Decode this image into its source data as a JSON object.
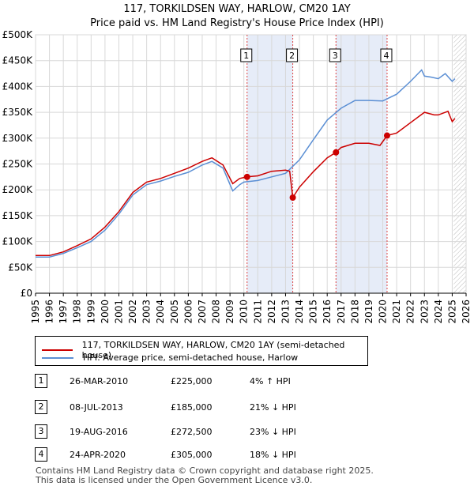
{
  "header": {
    "title": "117, TORKILDSEN WAY, HARLOW, CM20 1AY",
    "subtitle": "Price paid vs. HM Land Registry's House Price Index (HPI)"
  },
  "chart_data": {
    "type": "line",
    "title": "117, TORKILDSEN WAY, HARLOW, CM20 1AY",
    "subtitle": "Price paid vs. HM Land Registry's House Price Index (HPI)",
    "xlim": [
      1995,
      2026
    ],
    "ylim": [
      0,
      500000
    ],
    "y_ticks": [
      0,
      50000,
      100000,
      150000,
      200000,
      250000,
      300000,
      350000,
      400000,
      450000,
      500000
    ],
    "y_tick_labels": [
      "£0",
      "£50K",
      "£100K",
      "£150K",
      "£200K",
      "£250K",
      "£300K",
      "£350K",
      "£400K",
      "£450K",
      "£500K"
    ],
    "x_ticks": [
      1995,
      1996,
      1997,
      1998,
      1999,
      2000,
      2001,
      2002,
      2003,
      2004,
      2005,
      2006,
      2007,
      2008,
      2009,
      2010,
      2011,
      2012,
      2013,
      2014,
      2015,
      2016,
      2017,
      2018,
      2019,
      2020,
      2021,
      2022,
      2023,
      2024,
      2025,
      2026
    ],
    "x_tick_labels": [
      "1995",
      "1996",
      "1997",
      "1998",
      "1999",
      "2000",
      "2001",
      "2002",
      "2003",
      "2004",
      "2005",
      "2006",
      "2007",
      "2008",
      "2009",
      "2010",
      "2011",
      "2012",
      "2013",
      "2014",
      "2015",
      "2016",
      "2017",
      "2018",
      "2019",
      "2020",
      "2021",
      "2022",
      "2023",
      "2024",
      "2025",
      "2026"
    ],
    "grid": true,
    "shaded_regions": [
      [
        2010.23,
        2013.52
      ],
      [
        2016.63,
        2020.31
      ]
    ],
    "future_hatch_from": 2025.1,
    "series": [
      {
        "name": "117, TORKILDSEN WAY, HARLOW, CM20 1AY (semi-detached house)",
        "color": "#cc0000",
        "x": [
          1995,
          1996,
          1997,
          1998,
          1999,
          2000,
          2001,
          2002,
          2003,
          2004,
          2005,
          2006,
          2007,
          2007.7,
          2008.5,
          2009.2,
          2009.7,
          2010.23,
          2011,
          2012,
          2013,
          2013.3,
          2013.52,
          2014,
          2015,
          2016,
          2016.63,
          2017,
          2018,
          2019,
          2019.8,
          2020.31,
          2021,
          2022,
          2023,
          2023.7,
          2024,
          2024.7,
          2025,
          2025.2
        ],
        "values": [
          73000,
          73000,
          80000,
          92000,
          105000,
          128000,
          158000,
          195000,
          215000,
          222000,
          232000,
          242000,
          255000,
          262000,
          248000,
          212000,
          222000,
          225000,
          227000,
          236000,
          238000,
          236000,
          185000,
          205000,
          235000,
          262000,
          272500,
          282000,
          290000,
          290000,
          286000,
          305000,
          310000,
          330000,
          350000,
          345000,
          345000,
          352000,
          332000,
          338000
        ]
      },
      {
        "name": "HPI: Average price, semi-detached house, Harlow",
        "color": "#5b8fd4",
        "x": [
          1995,
          1996,
          1997,
          1998,
          1999,
          2000,
          2001,
          2002,
          2003,
          2004,
          2005,
          2006,
          2007,
          2007.7,
          2008.5,
          2009.2,
          2009.7,
          2010,
          2011,
          2012,
          2013,
          2014,
          2015,
          2016,
          2017,
          2018,
          2019,
          2020,
          2021,
          2022,
          2022.8,
          2023,
          2023.5,
          2024,
          2024.5,
          2025,
          2025.2
        ],
        "values": [
          70000,
          70000,
          77000,
          88000,
          100000,
          122000,
          153000,
          190000,
          210000,
          217000,
          226000,
          234000,
          248000,
          255000,
          242000,
          198000,
          210000,
          215000,
          218000,
          225000,
          232000,
          258000,
          297000,
          335000,
          358000,
          373000,
          373000,
          372000,
          385000,
          410000,
          432000,
          420000,
          418000,
          415000,
          425000,
          410000,
          415000
        ]
      }
    ],
    "transactions": [
      {
        "label": "1",
        "x": 2010.23,
        "price": 225000
      },
      {
        "label": "2",
        "x": 2013.52,
        "price": 185000
      },
      {
        "label": "3",
        "x": 2016.63,
        "price": 272500
      },
      {
        "label": "4",
        "x": 2020.31,
        "price": 305000
      }
    ]
  },
  "legend": {
    "items": [
      {
        "label": "117, TORKILDSEN WAY, HARLOW, CM20 1AY (semi-detached house)",
        "color": "#cc0000"
      },
      {
        "label": "HPI: Average price, semi-detached house, Harlow",
        "color": "#5b8fd4"
      }
    ]
  },
  "table": {
    "rows": [
      {
        "num": "1",
        "date": "26-MAR-2010",
        "price": "£225,000",
        "hpi": "4% ↑ HPI"
      },
      {
        "num": "2",
        "date": "08-JUL-2013",
        "price": "£185,000",
        "hpi": "21% ↓ HPI"
      },
      {
        "num": "3",
        "date": "19-AUG-2016",
        "price": "£272,500",
        "hpi": "23% ↓ HPI"
      },
      {
        "num": "4",
        "date": "24-APR-2020",
        "price": "£305,000",
        "hpi": "18% ↓ HPI"
      }
    ]
  },
  "footer": {
    "line1": "Contains HM Land Registry data © Crown copyright and database right 2025.",
    "line2": "This data is licensed under the Open Government Licence v3.0."
  }
}
